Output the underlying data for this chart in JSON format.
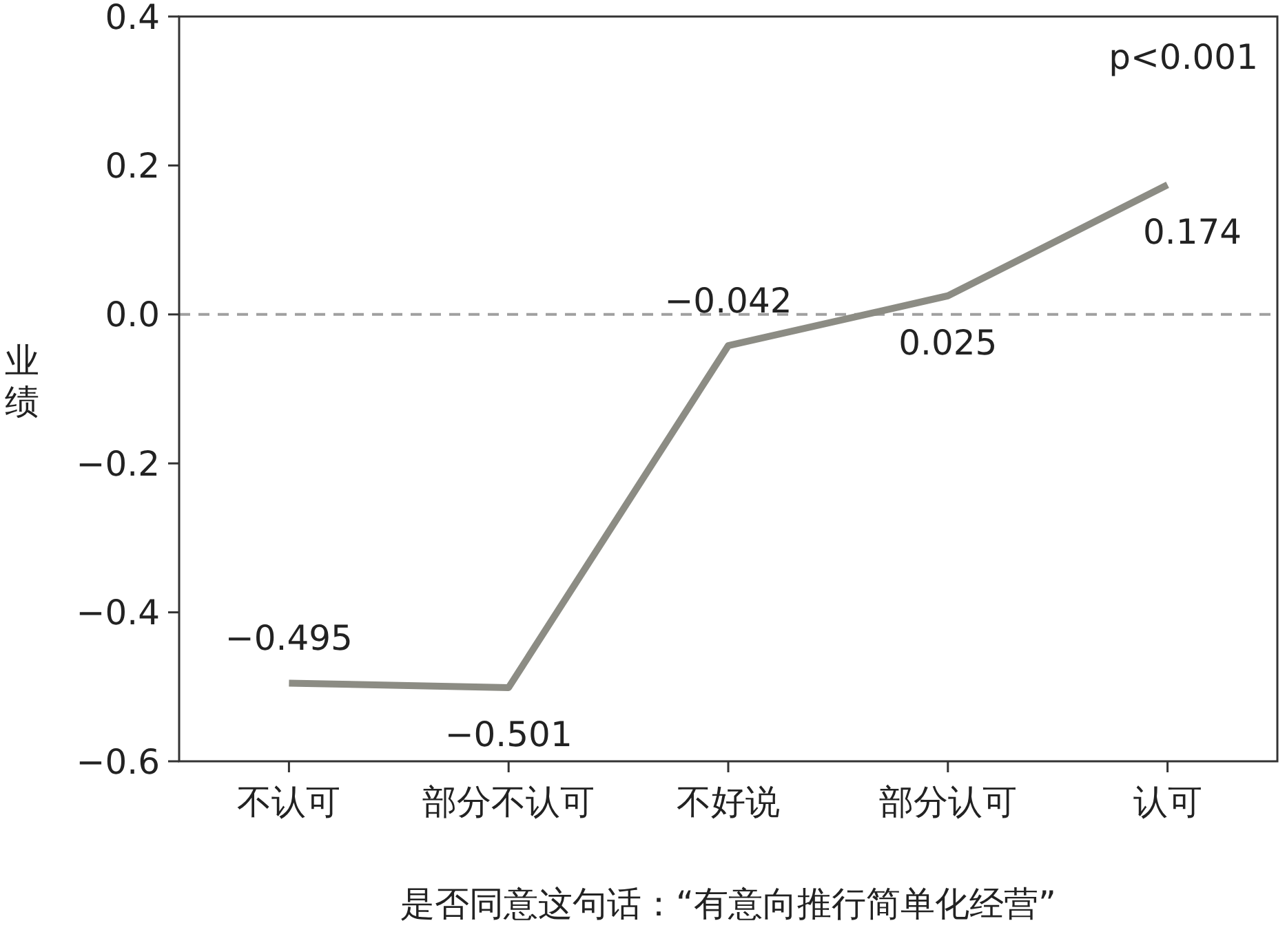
{
  "chart_data": {
    "type": "line",
    "xlabel": "是否同意这句话：“有意向推行简单化经营”",
    "ylabel": "业绩",
    "categories": [
      "不认可",
      "部分不认可",
      "不好说",
      "部分认可",
      "认可"
    ],
    "values": [
      -0.495,
      -0.501,
      -0.042,
      0.025,
      0.174
    ],
    "color": "#8c8c84",
    "data_labels": true,
    "ylim": [
      -0.6,
      0.4
    ],
    "yticks": [
      {
        "value": -0.6,
        "label": "−0.6"
      },
      {
        "value": -0.4,
        "label": "−0.4"
      },
      {
        "value": -0.2,
        "label": "−0.2"
      },
      {
        "value": 0,
        "label": "0.0"
      },
      {
        "value": 0.2,
        "label": "0.2"
      },
      {
        "value": 0.4,
        "label": "0.4"
      }
    ],
    "ref_lines": [
      {
        "axis": "y",
        "value": 0,
        "color": "#a0a0a0",
        "line_style": "dashed"
      }
    ],
    "annotations": [
      "p<0.001"
    ],
    "grid": false,
    "marker": "none",
    "line_style": "solid"
  }
}
